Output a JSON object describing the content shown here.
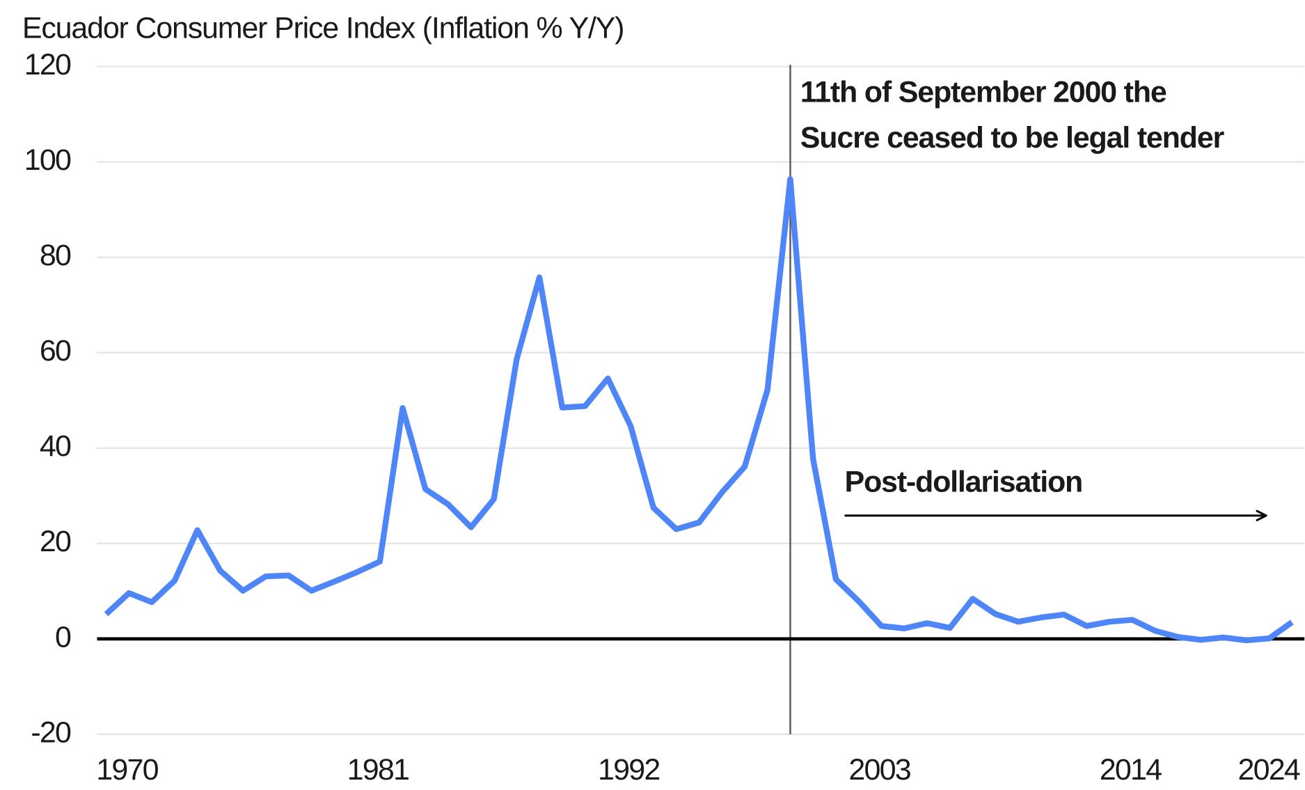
{
  "chart_data": {
    "type": "line",
    "title": "Ecuador Consumer Price Index (Inflation % Y/Y)",
    "x": [
      1970,
      1971,
      1972,
      1973,
      1974,
      1975,
      1976,
      1977,
      1978,
      1979,
      1980,
      1981,
      1982,
      1983,
      1984,
      1985,
      1986,
      1987,
      1988,
      1989,
      1990,
      1991,
      1992,
      1993,
      1994,
      1995,
      1996,
      1997,
      1998,
      1999,
      2000,
      2001,
      2002,
      2003,
      2004,
      2005,
      2006,
      2007,
      2008,
      2009,
      2010,
      2011,
      2012,
      2013,
      2014,
      2015,
      2016,
      2017,
      2018,
      2019,
      2020,
      2021,
      2022
    ],
    "series": [
      {
        "name": "Inflation % Y/Y",
        "color": "#4f86f7",
        "values": [
          5.2,
          9.6,
          7.7,
          12.2,
          22.8,
          14.3,
          10.1,
          13.1,
          13.3,
          10.1,
          12.0,
          14.0,
          16.2,
          48.4,
          31.4,
          28.2,
          23.4,
          29.3,
          58.6,
          75.8,
          48.5,
          48.8,
          54.6,
          44.6,
          27.5,
          23.0,
          24.4,
          30.7,
          36.1,
          52.2,
          96.4,
          37.7,
          12.5,
          7.9,
          2.7,
          2.2,
          3.3,
          2.3,
          8.4,
          5.2,
          3.6,
          4.5,
          5.1,
          2.7,
          3.6,
          4.0,
          1.7,
          0.4,
          -0.2,
          0.3,
          -0.3,
          0.1,
          3.5
        ]
      }
    ],
    "xlim": [
      1970,
      2022
    ],
    "xticks": [
      1970,
      1981,
      1992,
      2003,
      2014,
      2024
    ],
    "ylim": [
      -20,
      120
    ],
    "yticks": [
      -20,
      0,
      20,
      40,
      60,
      80,
      100,
      120
    ],
    "grid": true,
    "annotations": [
      {
        "x": 2000,
        "lines": [
          "11th of September 2000 the",
          "Sucre ceased to be legal tender"
        ]
      },
      {
        "text": "Post-dollarisation"
      }
    ]
  }
}
